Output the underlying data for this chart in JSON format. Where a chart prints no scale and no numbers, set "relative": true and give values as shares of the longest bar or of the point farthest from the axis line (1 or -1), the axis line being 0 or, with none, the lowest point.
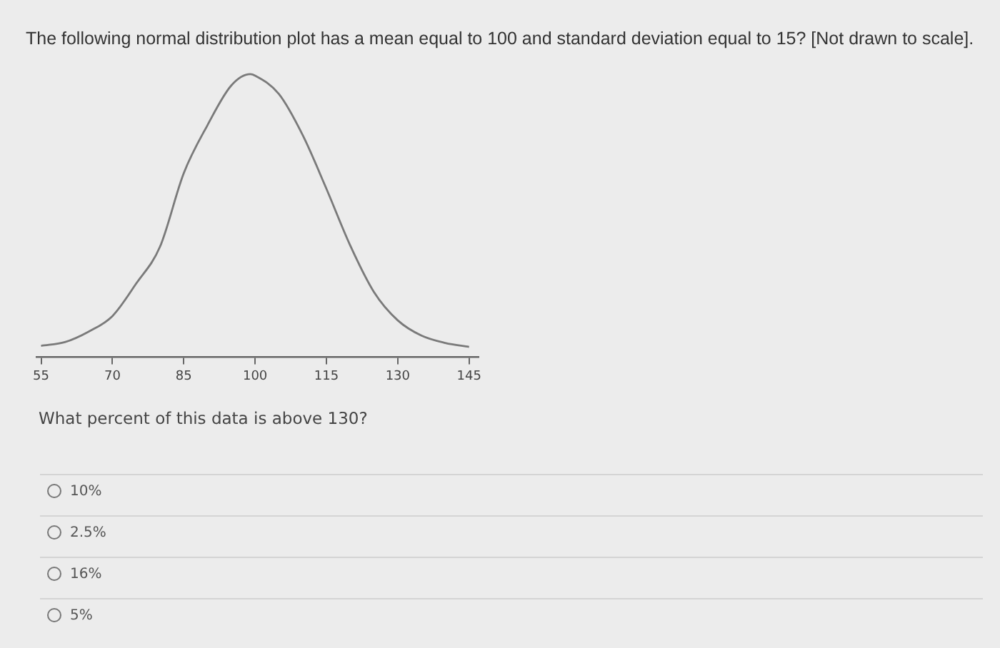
{
  "chart_data": {
    "type": "line",
    "title": "The following normal distribution plot has a mean equal to 100 and standard deviation equal to 15? [Not drawn to scale].",
    "relative": true,
    "x": [
      55,
      60,
      65,
      70,
      75,
      80,
      85,
      90,
      95,
      99,
      100,
      105,
      110,
      115,
      120,
      125,
      130,
      135,
      140,
      145
    ],
    "series": [
      {
        "color": "#7a7a7a",
        "values": [
          0.04,
          0.053,
          0.09,
          0.145,
          0.26,
          0.39,
          0.65,
          0.82,
          0.96,
          1,
          0.995,
          0.93,
          0.785,
          0.595,
          0.395,
          0.23,
          0.13,
          0.076,
          0.05,
          0.036
        ]
      }
    ],
    "xlim": [
      54,
      147
    ],
    "xticks": [
      55,
      70,
      85,
      100,
      115,
      130,
      145
    ],
    "grid": false,
    "legend": false,
    "marker": "none",
    "line_style": "solid",
    "annotations": [
      "What percent of this data is above 130?",
      "10%",
      "2.5%",
      "16%",
      "5%"
    ]
  }
}
